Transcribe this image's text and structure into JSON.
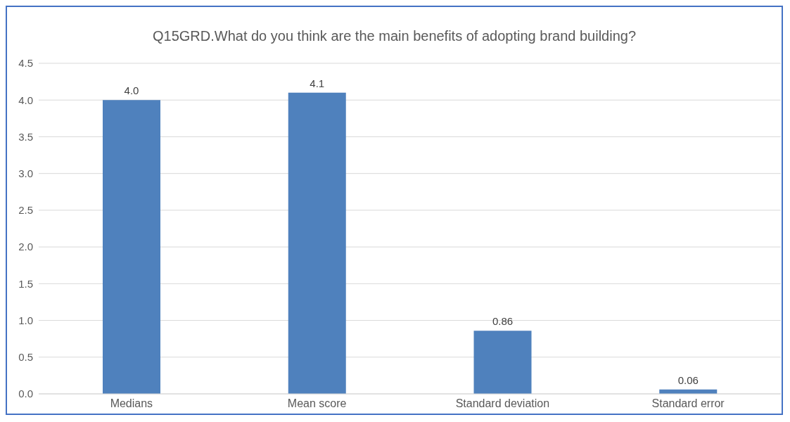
{
  "chart_data": {
    "type": "bar",
    "title": "Q15GRD.What do you think are the main benefits of adopting brand building?",
    "categories": [
      "Medians",
      "Mean score",
      "Standard deviation",
      "Standard error"
    ],
    "values": [
      4.0,
      4.1,
      0.86,
      0.06
    ],
    "value_labels": [
      "4.0",
      "4.1",
      "0.86",
      "0.06"
    ],
    "color": "#4f81bd",
    "ylim": [
      0,
      4.5
    ],
    "yticks": [
      {
        "value": 0,
        "label": "0.0"
      },
      {
        "value": 0.5,
        "label": "0.5"
      },
      {
        "value": 1,
        "label": "1.0"
      },
      {
        "value": 1.5,
        "label": "1.5"
      },
      {
        "value": 2,
        "label": "2.0"
      },
      {
        "value": 2.5,
        "label": "2.5"
      },
      {
        "value": 3,
        "label": "3.0"
      },
      {
        "value": 3.5,
        "label": "3.5"
      },
      {
        "value": 4,
        "label": "4.0"
      },
      {
        "value": 4.5,
        "label": "4.5"
      }
    ],
    "grid": "y"
  }
}
